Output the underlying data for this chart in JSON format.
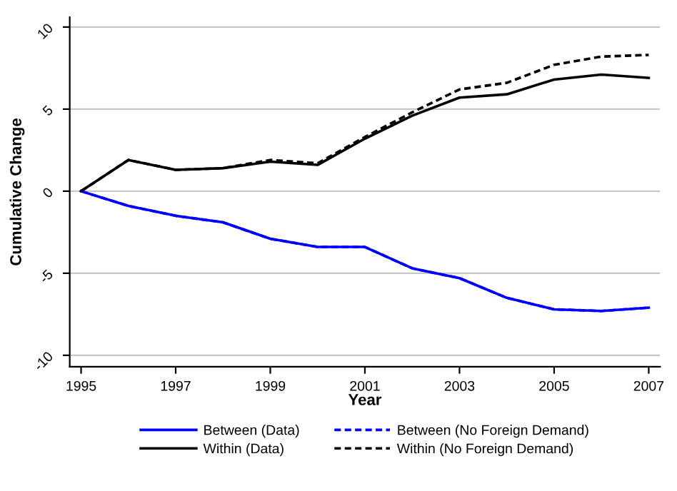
{
  "chart_data": {
    "type": "line",
    "xlabel": "Year",
    "ylabel": "Cumulative Change",
    "x": [
      1995,
      1996,
      1997,
      1998,
      1999,
      2000,
      2001,
      2002,
      2003,
      2004,
      2005,
      2006,
      2007
    ],
    "series": [
      {
        "name": "Between (Data)",
        "color": "#0000ff",
        "line_style": "solid",
        "values": [
          0,
          -0.9,
          -1.5,
          -1.9,
          -2.9,
          -3.4,
          -3.4,
          -4.7,
          -5.3,
          -6.5,
          -7.2,
          -7.3,
          -7.1
        ]
      },
      {
        "name": "Within (Data)",
        "color": "#000000",
        "line_style": "solid",
        "values": [
          0,
          1.9,
          1.3,
          1.4,
          1.8,
          1.6,
          3.2,
          4.6,
          5.7,
          5.9,
          6.8,
          7.1,
          6.9
        ]
      },
      {
        "name": "Between (No Foreign Demand)",
        "color": "#0000ff",
        "line_style": "dashed",
        "values": [
          0,
          -0.9,
          -1.5,
          -1.9,
          -2.9,
          -3.4,
          -3.4,
          -4.7,
          -5.3,
          -6.5,
          -7.2,
          -7.3,
          -7.1
        ]
      },
      {
        "name": "Within (No Foreign Demand)",
        "color": "#000000",
        "line_style": "dashed",
        "values": [
          0,
          1.9,
          1.3,
          1.4,
          1.9,
          1.7,
          3.3,
          4.8,
          6.2,
          6.6,
          7.7,
          8.2,
          8.3
        ]
      }
    ],
    "xlim": [
      1994.76,
      2007.24
    ],
    "ylim": [
      -10.7,
      10.6
    ],
    "xticks": [
      1995,
      1997,
      1999,
      2001,
      2003,
      2005,
      2007
    ],
    "yticks": [
      {
        "value": -10,
        "label": "-10"
      },
      {
        "value": -5,
        "label": "-5"
      },
      0,
      5,
      10
    ],
    "grid": "y",
    "legend": "bottom",
    "marker": "none"
  }
}
